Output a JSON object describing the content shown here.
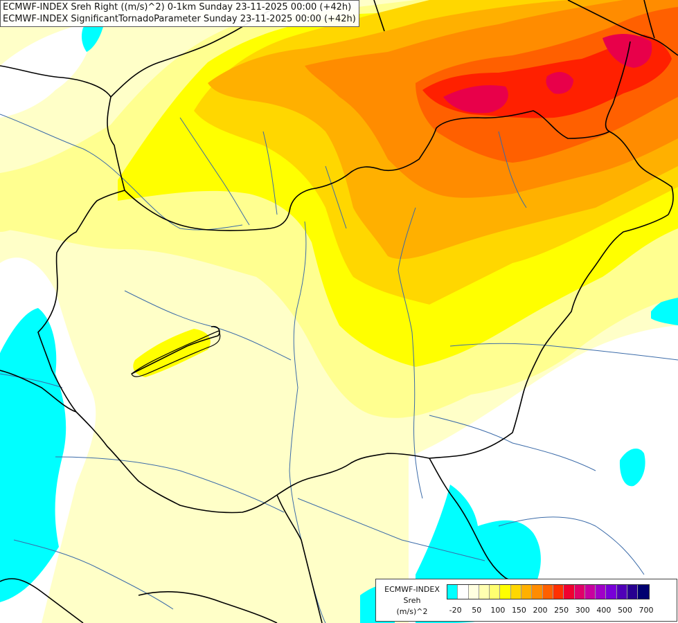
{
  "titles": {
    "line1": "ECMWF-INDEX Sreh Right ((m/s)^2) 0-1km Sunday 23-11-2025 00:00 (+42h)",
    "line2": "ECMWF-INDEX SignificantTornadoParameter Sunday 23-11-2025 00:00 (+42h)"
  },
  "legend": {
    "model": "ECMWF-INDEX",
    "variable": "Sreh",
    "unit": "(m/s)^2",
    "ticks": [
      "-20",
      "50",
      "100",
      "150",
      "200",
      "250",
      "300",
      "400",
      "500",
      "700"
    ],
    "colors": [
      "#00ffff",
      "#ffffff",
      "#ffffe0",
      "#ffffb0",
      "#ffff70",
      "#ffff00",
      "#ffd700",
      "#ffb000",
      "#ff8c00",
      "#ff6000",
      "#ff3000",
      "#f00030",
      "#e0006a",
      "#c800a0",
      "#a000c8",
      "#7800d8",
      "#5000b8",
      "#280090",
      "#000070"
    ]
  },
  "map": {
    "colors": {
      "cyan": "#00ffff",
      "white": "#ffffff",
      "pale": "#ffffc8",
      "light_yellow": "#ffff90",
      "yellow": "#ffff00",
      "gold": "#ffd700",
      "orange_light": "#ffb000",
      "orange": "#ff8c00",
      "orange_red": "#ff6000",
      "red": "#ff2000",
      "crimson": "#e8004a",
      "border": "#000000",
      "river": "#3a6aa8"
    }
  }
}
